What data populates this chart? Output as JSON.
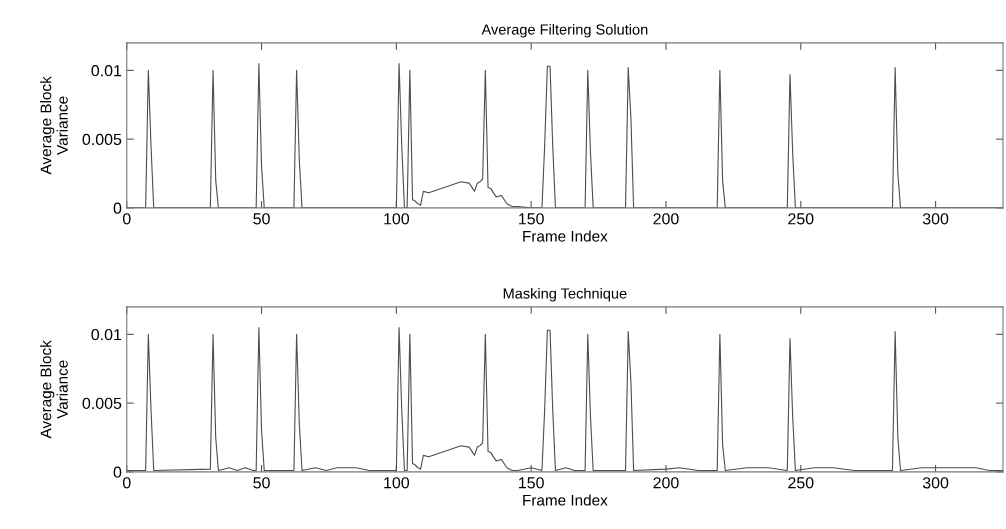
{
  "chart_data": [
    {
      "type": "line",
      "title": "Average Filtering Solution",
      "xlabel": "Frame Index",
      "ylabel": "Average Block\nVariance",
      "xlim": [
        0,
        325
      ],
      "xticks": [
        0,
        50,
        100,
        150,
        200,
        250,
        300
      ],
      "ylim": [
        0,
        0.012
      ],
      "yticks": [
        0,
        0.005,
        0.01
      ],
      "grid": false,
      "legend": false,
      "series": [
        {
          "color": "#4d4d4d",
          "x": [
            0,
            7,
            8,
            9,
            10,
            31,
            32,
            33,
            34,
            48,
            49,
            50,
            51,
            62,
            63,
            64,
            65,
            100,
            101,
            102,
            103,
            104,
            105,
            106,
            107,
            108,
            109,
            110,
            112,
            115,
            118,
            121,
            124,
            127,
            129,
            130,
            131,
            132,
            133,
            134,
            135,
            137,
            139,
            141,
            143,
            145,
            150,
            154,
            155,
            156,
            157,
            158,
            159,
            170,
            171,
            172,
            173,
            185,
            186,
            187,
            188,
            219,
            220,
            221,
            222,
            245,
            246,
            247,
            248,
            284,
            285,
            286,
            287,
            325
          ],
          "values": [
            0,
            0,
            0.01,
            0.0045,
            0,
            0,
            0.01,
            0.002,
            0,
            0,
            0.0105,
            0.003,
            0,
            0,
            0.01,
            0.0035,
            0,
            0,
            0.0105,
            0.0045,
            0,
            0,
            0.01,
            0.0006,
            0.0005,
            0.0003,
            0.0002,
            0.0012,
            0.0011,
            0.0013,
            0.0015,
            0.0017,
            0.0019,
            0.0018,
            0.0012,
            0.0018,
            0.0019,
            0.0021,
            0.01,
            0.0015,
            0.0014,
            0.0008,
            0.0009,
            0.0003,
            0.0001,
            0.0001,
            0,
            0,
            0.0045,
            0.0103,
            0.0103,
            0.0045,
            0,
            0,
            0.01,
            0.004,
            0,
            0,
            0.0102,
            0.0065,
            0,
            0,
            0.01,
            0.002,
            0,
            0,
            0.0097,
            0.004,
            0,
            0,
            0.0102,
            0.0025,
            0,
            0
          ]
        }
      ]
    },
    {
      "type": "line",
      "title": "Masking Technique",
      "xlabel": "Frame Index",
      "ylabel": "Average Block\nVariance",
      "xlim": [
        0,
        325
      ],
      "xticks": [
        0,
        50,
        100,
        150,
        200,
        250,
        300
      ],
      "ylim": [
        0,
        0.012
      ],
      "yticks": [
        0,
        0.005,
        0.01
      ],
      "grid": false,
      "legend": false,
      "series": [
        {
          "color": "#4d4d4d",
          "x": [
            0,
            7,
            8,
            9,
            10,
            31,
            32,
            33,
            34,
            38,
            41,
            44,
            47,
            48,
            49,
            50,
            51,
            62,
            63,
            64,
            65,
            70,
            74,
            78,
            85,
            90,
            99,
            100,
            101,
            102,
            103,
            104,
            105,
            106,
            107,
            108,
            109,
            110,
            112,
            115,
            118,
            121,
            124,
            127,
            129,
            130,
            131,
            132,
            133,
            134,
            135,
            137,
            139,
            141,
            143,
            145,
            150,
            154,
            155,
            156,
            157,
            158,
            159,
            163,
            166,
            170,
            171,
            172,
            173,
            185,
            186,
            187,
            188,
            200,
            205,
            212,
            219,
            220,
            221,
            222,
            230,
            238,
            245,
            246,
            247,
            248,
            255,
            262,
            270,
            284,
            285,
            286,
            287,
            295,
            305,
            315,
            320,
            325
          ],
          "values": [
            0.0001,
            0.0001,
            0.01,
            0.0045,
            0.0001,
            0.0002,
            0.01,
            0.0025,
            0.0001,
            0.0003,
            0.0001,
            0.0003,
            0.0001,
            0.0001,
            0.0105,
            0.003,
            0.0001,
            0.0001,
            0.01,
            0.0035,
            0.0001,
            0.0003,
            0.0001,
            0.0003,
            0.0003,
            0.0001,
            0.0001,
            0.0001,
            0.0105,
            0.0045,
            0.0001,
            0.0001,
            0.01,
            0.0006,
            0.0005,
            0.0003,
            0.0002,
            0.0012,
            0.0011,
            0.0013,
            0.0015,
            0.0017,
            0.0019,
            0.0018,
            0.0012,
            0.0018,
            0.0019,
            0.0021,
            0.01,
            0.0015,
            0.0014,
            0.0008,
            0.0009,
            0.0003,
            0.0001,
            0.0001,
            0.0003,
            0.0001,
            0.0045,
            0.0103,
            0.0103,
            0.0045,
            0.0001,
            0.0003,
            0.0001,
            0.0001,
            0.01,
            0.004,
            0.0001,
            0.0001,
            0.0102,
            0.0065,
            0.0001,
            0.0002,
            0.0003,
            0.0001,
            0.0001,
            0.01,
            0.002,
            0.0001,
            0.0003,
            0.0003,
            0.0001,
            0.0097,
            0.004,
            0.0001,
            0.0003,
            0.0003,
            0.0001,
            0.0001,
            0.0102,
            0.0025,
            0.0001,
            0.0003,
            0.0003,
            0.0003,
            0.0001,
            0.0001
          ]
        }
      ]
    }
  ]
}
